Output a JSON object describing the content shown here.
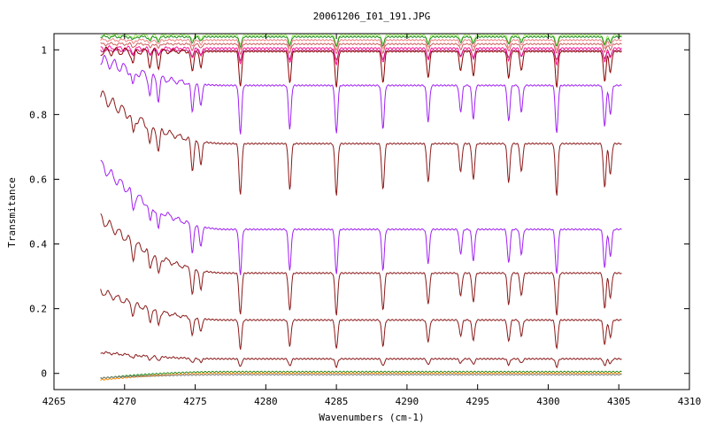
{
  "chart_data": {
    "type": "line",
    "title": "20061206_I01_191.JPG",
    "xlabel": "Wavenumbers (cm-1)",
    "ylabel": "Transmitance",
    "xlim": [
      4265,
      4310
    ],
    "ylim": [
      -0.05,
      1.05
    ],
    "x_ticks": [
      4265,
      4270,
      4275,
      4280,
      4285,
      4290,
      4295,
      4300,
      4305,
      4310
    ],
    "y_ticks": [
      0,
      0.2,
      0.4,
      0.6,
      0.8,
      1
    ],
    "x_range": [
      4268.3,
      4305.2
    ],
    "grid": false,
    "legend": "none",
    "absorption_lines": [
      {
        "x": 4270.6,
        "strength": 0.35
      },
      {
        "x": 4271.8,
        "strength": 0.4
      },
      {
        "x": 4272.4,
        "strength": 0.45
      },
      {
        "x": 4274.8,
        "strength": 0.6
      },
      {
        "x": 4275.4,
        "strength": 0.45
      },
      {
        "x": 4278.2,
        "strength": 1.0
      },
      {
        "x": 4281.7,
        "strength": 0.9
      },
      {
        "x": 4285.0,
        "strength": 1.0
      },
      {
        "x": 4288.3,
        "strength": 0.9
      },
      {
        "x": 4291.5,
        "strength": 0.75
      },
      {
        "x": 4293.8,
        "strength": 0.55
      },
      {
        "x": 4294.7,
        "strength": 0.7
      },
      {
        "x": 4297.2,
        "strength": 0.75
      },
      {
        "x": 4298.1,
        "strength": 0.55
      },
      {
        "x": 4300.6,
        "strength": 1.0
      },
      {
        "x": 4304.0,
        "strength": 0.85
      },
      {
        "x": 4304.4,
        "strength": 0.6
      }
    ],
    "series": [
      {
        "color": "#90ee50",
        "baseline": 1.045,
        "depth": 0.03,
        "startBoost": 0.0
      },
      {
        "color": "#228b22",
        "baseline": 1.04,
        "depth": 0.03,
        "startBoost": 0.0
      },
      {
        "color": "#f08080",
        "baseline": 1.03,
        "depth": 0.03,
        "startBoost": 0.0
      },
      {
        "color": "#cd5c5c",
        "baseline": 1.018,
        "depth": 0.03,
        "startBoost": 0.0
      },
      {
        "color": "#ff1493",
        "baseline": 1.005,
        "depth": 0.05,
        "startBoost": 0.0
      },
      {
        "color": "#c71585",
        "baseline": 0.998,
        "depth": 0.03,
        "startBoost": 0.0
      },
      {
        "color": "#8b0000",
        "baseline": 0.995,
        "depth": 0.11,
        "startBoost": 0.0
      },
      {
        "color": "#a020f0",
        "baseline": 0.89,
        "depth": 0.15,
        "startBoost": 0.08
      },
      {
        "color": "#8b1a1a",
        "baseline": 0.71,
        "depth": 0.16,
        "startBoost": 0.15
      },
      {
        "color": "#a020f0",
        "baseline": 0.445,
        "depth": 0.14,
        "startBoost": 0.2
      },
      {
        "color": "#8b1a1a",
        "baseline": 0.31,
        "depth": 0.13,
        "startBoost": 0.17
      },
      {
        "color": "#8b1a1a",
        "baseline": 0.165,
        "depth": 0.09,
        "startBoost": 0.09
      },
      {
        "color": "#8b1a1a",
        "baseline": 0.045,
        "depth": 0.025,
        "startBoost": 0.02
      },
      {
        "color": "#228b22",
        "baseline": 0.005,
        "depth": 0.0,
        "startBoost": -0.02
      },
      {
        "color": "#ff8c00",
        "baseline": 0.0,
        "depth": 0.0,
        "startBoost": -0.02
      },
      {
        "color": "#808080",
        "baseline": -0.004,
        "depth": 0.0,
        "startBoost": -0.01
      }
    ]
  }
}
